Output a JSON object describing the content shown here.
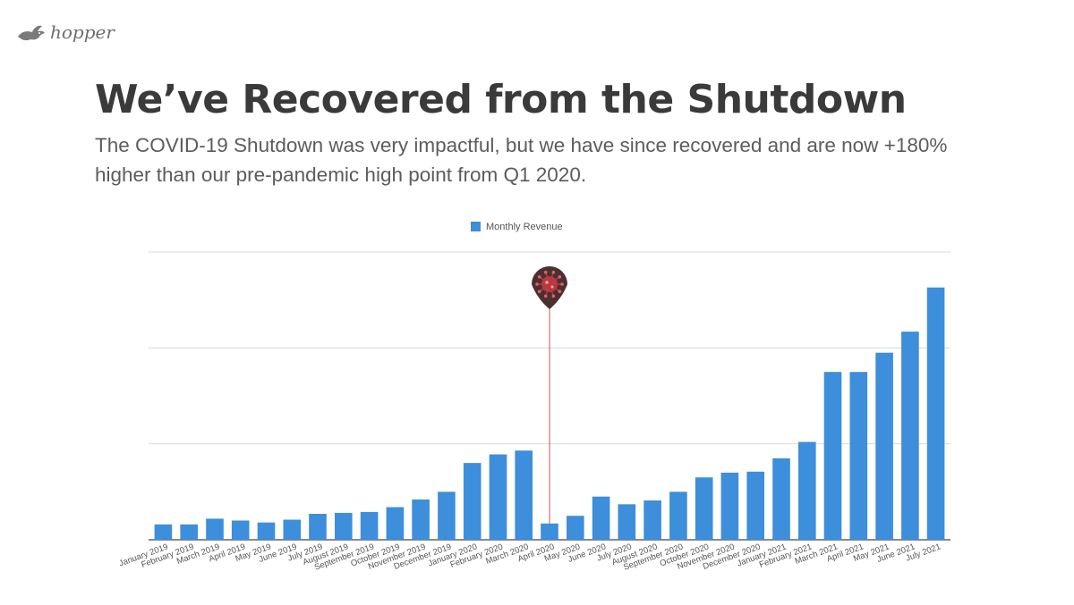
{
  "logo": {
    "text": "hopper",
    "icon": "bunny-icon"
  },
  "title": "We’ve Recovered from the Shutdown",
  "subtitle": "The COVID-19 Shutdown was very impactful, but we have since recovered and are now +180% higher than our pre-pandemic high point from Q1 2020.",
  "chart_data": {
    "type": "bar",
    "categories": [
      "January 2019",
      "February 2019",
      "March 2019",
      "April 2019",
      "May 2019",
      "June 2019",
      "July 2019",
      "August 2019",
      "September 2019",
      "October 2019",
      "November 2019",
      "December 2019",
      "January 2020",
      "February 2020",
      "March 2020",
      "April 2020",
      "May 2020",
      "June 2020",
      "July 2020",
      "August 2020",
      "September 2020",
      "October 2020",
      "November 2020",
      "December 2020",
      "January 2021",
      "February 2021",
      "March 2021",
      "April 2021",
      "May 2021",
      "June 2021",
      "July 2021"
    ],
    "series": [
      {
        "name": "Monthly Revenue",
        "color": "#3d8edb",
        "values": [
          0.16,
          0.16,
          0.22,
          0.2,
          0.18,
          0.21,
          0.27,
          0.28,
          0.29,
          0.34,
          0.42,
          0.5,
          0.8,
          0.89,
          0.93,
          0.17,
          0.25,
          0.45,
          0.37,
          0.41,
          0.5,
          0.65,
          0.7,
          0.71,
          0.85,
          1.02,
          1.75,
          1.75,
          1.95,
          2.17,
          2.63
        ]
      }
    ],
    "ylim": [
      0,
      3
    ],
    "grid": true,
    "legend_position": "top-center",
    "annotation": {
      "category": "April 2020",
      "icon": "virus-icon",
      "color": "#b83a3e"
    }
  }
}
